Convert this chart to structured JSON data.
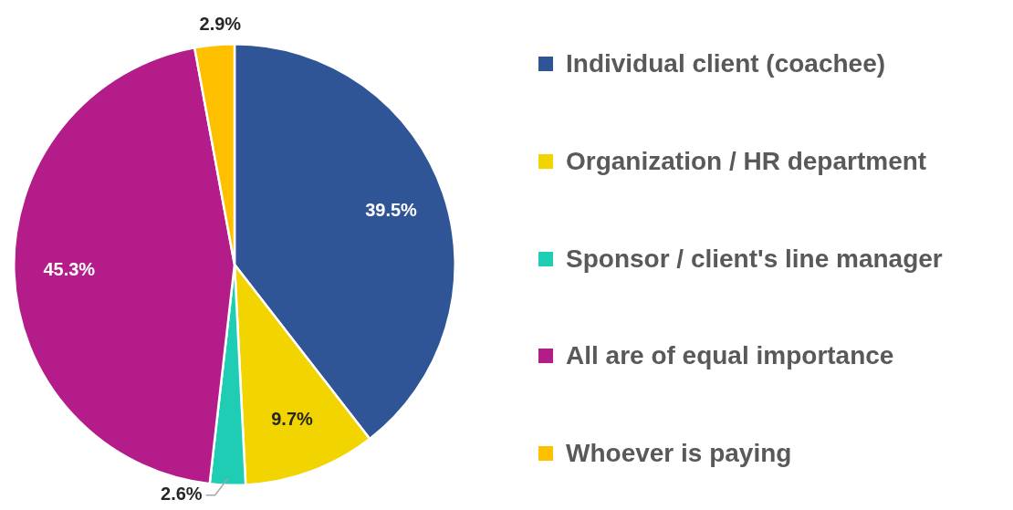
{
  "chart_data": {
    "type": "pie",
    "categories": [
      "Individual client (coachee)",
      "Organization / HR department",
      "Sponsor / client's line manager",
      "All are of equal importance",
      "Whoever is paying"
    ],
    "values": [
      39.5,
      9.7,
      2.6,
      45.3,
      2.9
    ],
    "colors": [
      "#2f5597",
      "#f2d400",
      "#1ecdb4",
      "#b41c8a",
      "#ffc000"
    ],
    "value_labels": [
      "39.5%",
      "9.7%",
      "2.6%",
      "45.3%",
      "2.9%"
    ],
    "legend": "right"
  }
}
